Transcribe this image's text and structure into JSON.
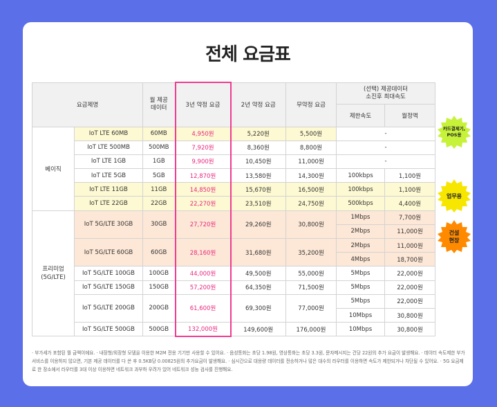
{
  "title": "전체 요금표",
  "headers": {
    "plan": "요금제명",
    "data": "월 제공\n데이터",
    "price3": "3년 약정 요금",
    "price2": "2년 약정 요금",
    "price0": "무약정 요금",
    "option": "(선택) 제공데이터\n소진후 최대속도",
    "limit": "제한속도",
    "monthly": "월정액"
  },
  "groups": {
    "basic": "베이직",
    "premium": "프리미엄\n(5G/LTE)"
  },
  "rows": [
    {
      "name": "IoT LTE 60MB",
      "data": "60MB",
      "p3": "4,950원",
      "p2": "5,220원",
      "p0": "5,500원",
      "speed": "-",
      "fee": ""
    },
    {
      "name": "IoT LTE 500MB",
      "data": "500MB",
      "p3": "7,920원",
      "p2": "8,360원",
      "p0": "8,800원",
      "speed": "-",
      "fee": ""
    },
    {
      "name": "IoT LTE 1GB",
      "data": "1GB",
      "p3": "9,900원",
      "p2": "10,450원",
      "p0": "11,000원",
      "speed": "-",
      "fee": ""
    },
    {
      "name": "IoT LTE 5GB",
      "data": "5GB",
      "p3": "12,870원",
      "p2": "13,580원",
      "p0": "14,300원",
      "speed": "100kbps",
      "fee": "1,100원"
    },
    {
      "name": "IoT LTE 11GB",
      "data": "11GB",
      "p3": "14,850원",
      "p2": "15,670원",
      "p0": "16,500원",
      "speed": "100kbps",
      "fee": "1,100원"
    },
    {
      "name": "IoT LTE 22GB",
      "data": "22GB",
      "p3": "22,270원",
      "p2": "23,510원",
      "p0": "24,750원",
      "speed": "500kbps",
      "fee": "4,400원"
    },
    {
      "name": "IoT 5G/LTE 30GB",
      "data": "30GB",
      "p3": "27,720원",
      "p2": "29,260원",
      "p0": "30,800원",
      "speed": "1Mbps",
      "fee": "7,700원",
      "speed2": "2Mbps",
      "fee2": "11,000원"
    },
    {
      "name": "IoT 5G/LTE 60GB",
      "data": "60GB",
      "p3": "28,160원",
      "p2": "31,680원",
      "p0": "35,200원",
      "speed": "2Mbps",
      "fee": "11,000원",
      "speed2": "4Mbps",
      "fee2": "18,700원"
    },
    {
      "name": "IoT 5G/LTE 100GB",
      "data": "100GB",
      "p3": "44,000원",
      "p2": "49,500원",
      "p0": "55,000원",
      "speed": "5Mbps",
      "fee": "22,000원"
    },
    {
      "name": "IoT 5G/LTE 150GB",
      "data": "150GB",
      "p3": "57,200원",
      "p2": "64,350원",
      "p0": "71,500원",
      "speed": "5Mbps",
      "fee": "22,000원"
    },
    {
      "name": "IoT 5G/LTE 200GB",
      "data": "200GB",
      "p3": "61,600원",
      "p2": "69,300원",
      "p0": "77,000원",
      "speed": "5Mbps",
      "fee": "22,000원",
      "speed2": "10Mbps",
      "fee2": "30,800원"
    },
    {
      "name": "IoT 5G/LTE 500GB",
      "data": "500GB",
      "p3": "132,000원",
      "p2": "149,600원",
      "p0": "176,000원",
      "speed": "10Mbps",
      "fee": "30,800원"
    }
  ],
  "badges": {
    "card": "카드결제기,\nPOS용",
    "business": "업무용",
    "construction": "건설\n현장"
  },
  "notes": "· 부가세가 포함된 월 금액이에요.   · 내장형/외장형 모뎀을 이용한 M2M 전용 기기만 사용할 수 있어요.   · 음성통화는 초당 1.98원, 영상통화는 초당 3.3원, 문자메시지는 건당 22원의 추가 요금이 발생해요.   · 데이터 속도제한 부가서비스를 이용하지 않으면, 기본 제공 데이터를 다 쓴 후 0.5KB당 0.00825원의 추가요금이 발생해요.   · 심시간으로 대용량 데이터를 전송하거나 많은 대수의 라우터를 이용하면 속도가 제한되거나 차단될 수 있어요.   · 5G 요금제로 한 장소에서 라우터를 3대 이상 이용하면 네트워크 과부하 우려가 있어 네트워크 성능 검사를 진행해요.",
  "colors": {
    "background": "#5b6fe8",
    "highlight_column": "#ee3b8f",
    "yellow_rows": "#fdf9d2",
    "orange_rows": "#fde7d6",
    "badge_green": "#c6f23a",
    "badge_yellow": "#f6e600",
    "badge_orange": "#ff8a00"
  }
}
